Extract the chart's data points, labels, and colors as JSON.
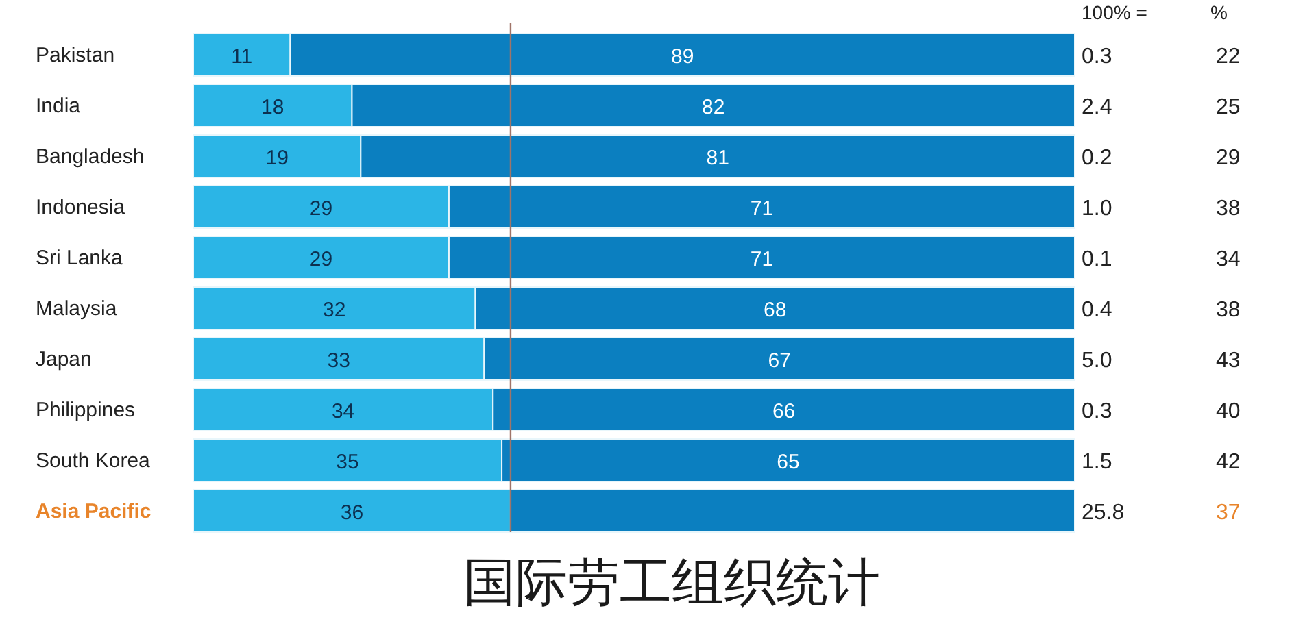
{
  "chart_data": {
    "type": "bar",
    "orientation": "horizontal",
    "stacked": true,
    "categories": [
      "Pakistan",
      "India",
      "Bangladesh",
      "Indonesia",
      "Sri Lanka",
      "Malaysia",
      "Japan",
      "Philippines",
      "South Korea",
      "Asia Pacific"
    ],
    "series": [
      {
        "color": "#2bb5e6",
        "values": [
          11,
          18,
          19,
          29,
          29,
          32,
          33,
          34,
          35,
          36
        ],
        "value_labels": [
          "11",
          "18",
          "19",
          "29",
          "29",
          "32",
          "33",
          "34",
          "35",
          "36"
        ]
      },
      {
        "color": "#0b7fc0",
        "values": [
          89,
          82,
          81,
          71,
          71,
          68,
          67,
          66,
          65,
          64
        ],
        "value_labels": [
          "89",
          "82",
          "81",
          "71",
          "71",
          "68",
          "67",
          "66",
          "65",
          null
        ]
      }
    ],
    "ref_lines": [
      {
        "axis": "x",
        "value": 36,
        "color": "#a07468"
      }
    ],
    "annotations": [
      "100% =",
      "%",
      "国际劳工组织统计",
      "0.3",
      "22",
      "2.4",
      "25",
      "0.2",
      "29",
      "1.0",
      "38",
      "0.1",
      "34",
      "0.4",
      "38",
      "5.0",
      "43",
      "0.3",
      "40",
      "1.5",
      "42",
      "25.8",
      "37"
    ]
  }
}
